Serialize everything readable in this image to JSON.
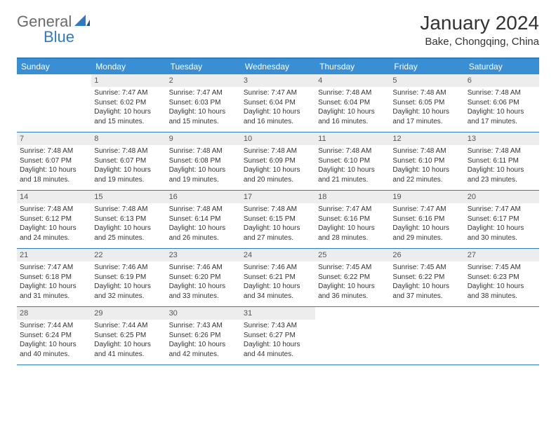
{
  "logo": {
    "text_general": "General",
    "text_blue": "Blue"
  },
  "title": "January 2024",
  "location": "Bake, Chongqing, China",
  "colors": {
    "header_bg": "#3a8fd4",
    "header_border": "#2e7cc0",
    "daynum_bg": "#ededed",
    "daynum_fg": "#555555",
    "body_text": "#333333",
    "logo_gray": "#6b6b6b",
    "logo_blue": "#2e7cc0"
  },
  "day_headers": [
    "Sunday",
    "Monday",
    "Tuesday",
    "Wednesday",
    "Thursday",
    "Friday",
    "Saturday"
  ],
  "weeks": [
    [
      null,
      {
        "n": "1",
        "sunrise": "Sunrise: 7:47 AM",
        "sunset": "Sunset: 6:02 PM",
        "daylight": "Daylight: 10 hours and 15 minutes."
      },
      {
        "n": "2",
        "sunrise": "Sunrise: 7:47 AM",
        "sunset": "Sunset: 6:03 PM",
        "daylight": "Daylight: 10 hours and 15 minutes."
      },
      {
        "n": "3",
        "sunrise": "Sunrise: 7:47 AM",
        "sunset": "Sunset: 6:04 PM",
        "daylight": "Daylight: 10 hours and 16 minutes."
      },
      {
        "n": "4",
        "sunrise": "Sunrise: 7:48 AM",
        "sunset": "Sunset: 6:04 PM",
        "daylight": "Daylight: 10 hours and 16 minutes."
      },
      {
        "n": "5",
        "sunrise": "Sunrise: 7:48 AM",
        "sunset": "Sunset: 6:05 PM",
        "daylight": "Daylight: 10 hours and 17 minutes."
      },
      {
        "n": "6",
        "sunrise": "Sunrise: 7:48 AM",
        "sunset": "Sunset: 6:06 PM",
        "daylight": "Daylight: 10 hours and 17 minutes."
      }
    ],
    [
      {
        "n": "7",
        "sunrise": "Sunrise: 7:48 AM",
        "sunset": "Sunset: 6:07 PM",
        "daylight": "Daylight: 10 hours and 18 minutes."
      },
      {
        "n": "8",
        "sunrise": "Sunrise: 7:48 AM",
        "sunset": "Sunset: 6:07 PM",
        "daylight": "Daylight: 10 hours and 19 minutes."
      },
      {
        "n": "9",
        "sunrise": "Sunrise: 7:48 AM",
        "sunset": "Sunset: 6:08 PM",
        "daylight": "Daylight: 10 hours and 19 minutes."
      },
      {
        "n": "10",
        "sunrise": "Sunrise: 7:48 AM",
        "sunset": "Sunset: 6:09 PM",
        "daylight": "Daylight: 10 hours and 20 minutes."
      },
      {
        "n": "11",
        "sunrise": "Sunrise: 7:48 AM",
        "sunset": "Sunset: 6:10 PM",
        "daylight": "Daylight: 10 hours and 21 minutes."
      },
      {
        "n": "12",
        "sunrise": "Sunrise: 7:48 AM",
        "sunset": "Sunset: 6:10 PM",
        "daylight": "Daylight: 10 hours and 22 minutes."
      },
      {
        "n": "13",
        "sunrise": "Sunrise: 7:48 AM",
        "sunset": "Sunset: 6:11 PM",
        "daylight": "Daylight: 10 hours and 23 minutes."
      }
    ],
    [
      {
        "n": "14",
        "sunrise": "Sunrise: 7:48 AM",
        "sunset": "Sunset: 6:12 PM",
        "daylight": "Daylight: 10 hours and 24 minutes."
      },
      {
        "n": "15",
        "sunrise": "Sunrise: 7:48 AM",
        "sunset": "Sunset: 6:13 PM",
        "daylight": "Daylight: 10 hours and 25 minutes."
      },
      {
        "n": "16",
        "sunrise": "Sunrise: 7:48 AM",
        "sunset": "Sunset: 6:14 PM",
        "daylight": "Daylight: 10 hours and 26 minutes."
      },
      {
        "n": "17",
        "sunrise": "Sunrise: 7:48 AM",
        "sunset": "Sunset: 6:15 PM",
        "daylight": "Daylight: 10 hours and 27 minutes."
      },
      {
        "n": "18",
        "sunrise": "Sunrise: 7:47 AM",
        "sunset": "Sunset: 6:16 PM",
        "daylight": "Daylight: 10 hours and 28 minutes."
      },
      {
        "n": "19",
        "sunrise": "Sunrise: 7:47 AM",
        "sunset": "Sunset: 6:16 PM",
        "daylight": "Daylight: 10 hours and 29 minutes."
      },
      {
        "n": "20",
        "sunrise": "Sunrise: 7:47 AM",
        "sunset": "Sunset: 6:17 PM",
        "daylight": "Daylight: 10 hours and 30 minutes."
      }
    ],
    [
      {
        "n": "21",
        "sunrise": "Sunrise: 7:47 AM",
        "sunset": "Sunset: 6:18 PM",
        "daylight": "Daylight: 10 hours and 31 minutes."
      },
      {
        "n": "22",
        "sunrise": "Sunrise: 7:46 AM",
        "sunset": "Sunset: 6:19 PM",
        "daylight": "Daylight: 10 hours and 32 minutes."
      },
      {
        "n": "23",
        "sunrise": "Sunrise: 7:46 AM",
        "sunset": "Sunset: 6:20 PM",
        "daylight": "Daylight: 10 hours and 33 minutes."
      },
      {
        "n": "24",
        "sunrise": "Sunrise: 7:46 AM",
        "sunset": "Sunset: 6:21 PM",
        "daylight": "Daylight: 10 hours and 34 minutes."
      },
      {
        "n": "25",
        "sunrise": "Sunrise: 7:45 AM",
        "sunset": "Sunset: 6:22 PM",
        "daylight": "Daylight: 10 hours and 36 minutes."
      },
      {
        "n": "26",
        "sunrise": "Sunrise: 7:45 AM",
        "sunset": "Sunset: 6:22 PM",
        "daylight": "Daylight: 10 hours and 37 minutes."
      },
      {
        "n": "27",
        "sunrise": "Sunrise: 7:45 AM",
        "sunset": "Sunset: 6:23 PM",
        "daylight": "Daylight: 10 hours and 38 minutes."
      }
    ],
    [
      {
        "n": "28",
        "sunrise": "Sunrise: 7:44 AM",
        "sunset": "Sunset: 6:24 PM",
        "daylight": "Daylight: 10 hours and 40 minutes."
      },
      {
        "n": "29",
        "sunrise": "Sunrise: 7:44 AM",
        "sunset": "Sunset: 6:25 PM",
        "daylight": "Daylight: 10 hours and 41 minutes."
      },
      {
        "n": "30",
        "sunrise": "Sunrise: 7:43 AM",
        "sunset": "Sunset: 6:26 PM",
        "daylight": "Daylight: 10 hours and 42 minutes."
      },
      {
        "n": "31",
        "sunrise": "Sunrise: 7:43 AM",
        "sunset": "Sunset: 6:27 PM",
        "daylight": "Daylight: 10 hours and 44 minutes."
      },
      null,
      null,
      null
    ]
  ]
}
